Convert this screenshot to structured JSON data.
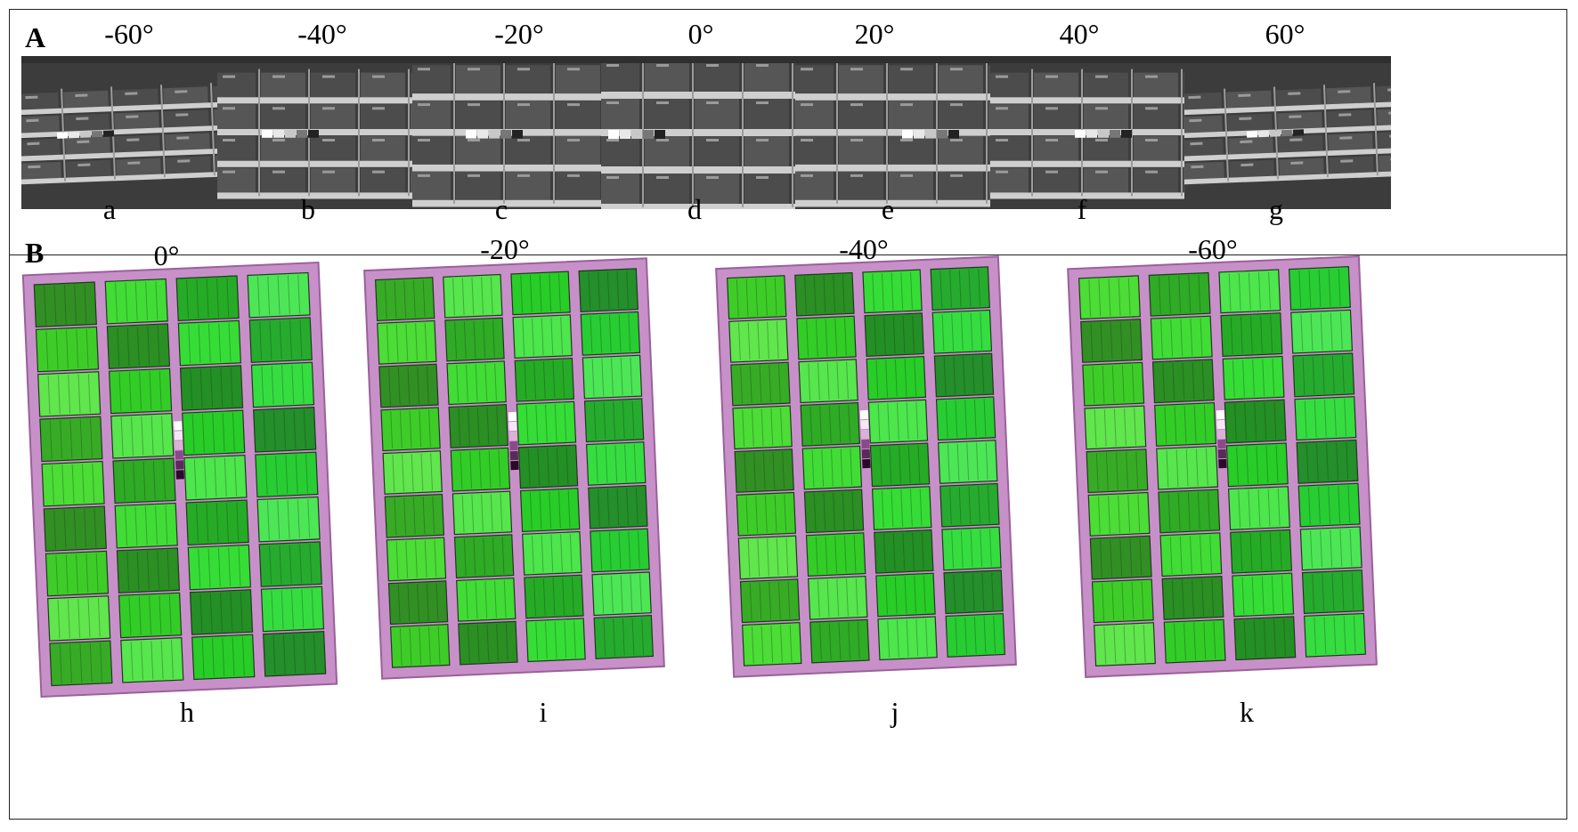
{
  "panel_a": {
    "letter": "A",
    "images": [
      {
        "angle": "-60°",
        "label": "a",
        "tilt": -2.2,
        "squeeze": 0.62
      },
      {
        "angle": "-40°",
        "label": "b",
        "tilt": 0.0,
        "squeeze": 0.85
      },
      {
        "angle": "-20°",
        "label": "c",
        "tilt": 0.0,
        "squeeze": 0.95
      },
      {
        "angle": "0°",
        "label": "d",
        "tilt": 0.0,
        "squeeze": 1.0
      },
      {
        "angle": "20°",
        "label": "e",
        "tilt": 0.0,
        "squeeze": 0.95
      },
      {
        "angle": "40°",
        "label": "f",
        "tilt": 0.0,
        "squeeze": 0.85
      },
      {
        "angle": "60°",
        "label": "g",
        "tilt": -2.2,
        "squeeze": 0.62
      }
    ]
  },
  "panel_b": {
    "letter": "B",
    "images": [
      {
        "angle": "0°",
        "label": "h",
        "tilt": -2.5
      },
      {
        "angle": "-20°",
        "label": "i",
        "tilt": -2.5
      },
      {
        "angle": "-40°",
        "label": "j",
        "tilt": -2.5
      },
      {
        "angle": "-60°",
        "label": "k",
        "tilt": -2.5
      }
    ]
  },
  "colors": {
    "gray_dark": "#3c3c3c",
    "gray_mid": "#5a5a5a",
    "gray_light": "#cfcfcf",
    "crop_green": "#39c832",
    "crop_dark": "#2f6e35",
    "path_pink": "#c890c8",
    "path_edge": "#9a609a"
  }
}
